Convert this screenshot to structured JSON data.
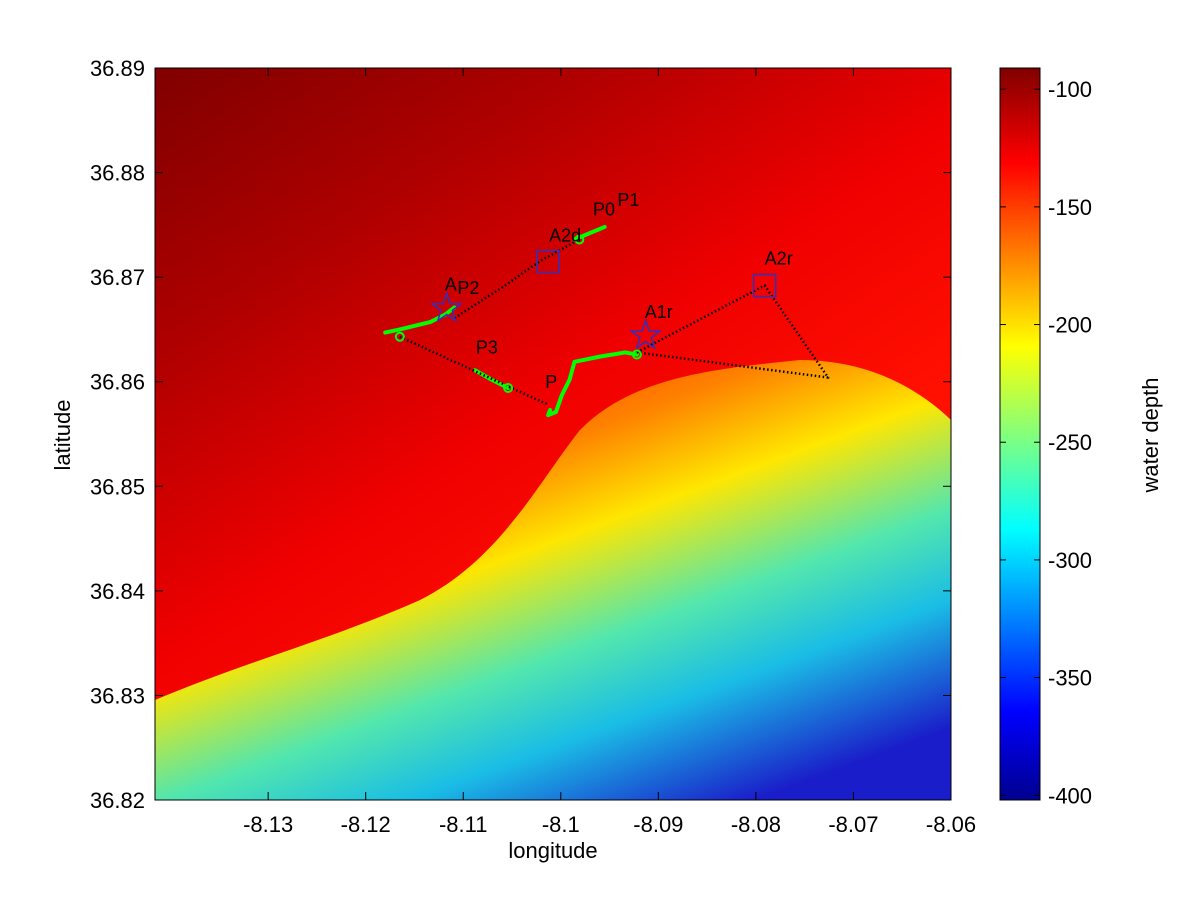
{
  "chart_data": {
    "type": "map",
    "xlabel": "longitude",
    "ylabel": "latitude",
    "xlim": [
      -8.1416,
      -8.06
    ],
    "ylim": [
      36.82,
      36.89
    ],
    "xticks": [
      -8.13,
      -8.12,
      -8.11,
      -8.1,
      -8.09,
      -8.08,
      -8.07,
      -8.06
    ],
    "yticks": [
      36.82,
      36.83,
      36.84,
      36.85,
      36.86,
      36.87,
      36.88,
      36.89
    ],
    "colorbar": {
      "label": "water depth",
      "lim": [
        -402,
        -91
      ],
      "ticks": [
        -400,
        -350,
        -300,
        -250,
        -200,
        -150,
        -100
      ]
    },
    "tracks": [
      {
        "color": "#00ff00",
        "style": "solid",
        "x": [
          -8.0986,
          -8.0955
        ],
        "y": [
          36.8736,
          36.8748
        ]
      },
      {
        "color": "#00ff00",
        "style": "solid",
        "x": [
          -8.118,
          -8.1165,
          -8.1134,
          -8.1119,
          -8.1109
        ],
        "y": [
          36.8647,
          36.865,
          36.8657,
          36.8664,
          36.8671
        ]
      },
      {
        "color": "#00ff00",
        "style": "solid",
        "x": [
          -8.1088,
          -8.1071,
          -8.1054
        ],
        "y": [
          36.8611,
          36.8602,
          36.8594
        ]
      },
      {
        "color": "#00ff00",
        "style": "solid",
        "x": [
          -8.1011,
          -8.1013,
          -8.1005,
          -8.0999,
          -8.0991,
          -8.0986,
          -8.096,
          -8.0934,
          -8.0922
        ],
        "y": [
          36.8573,
          36.8568,
          36.8571,
          36.8587,
          36.8602,
          36.8619,
          36.8624,
          36.8628,
          36.8626
        ]
      },
      {
        "color": "#000000",
        "style": "dotted",
        "x": [
          -8.1109,
          -8.1057,
          -8.1022,
          -8.0981
        ],
        "y": [
          36.8661,
          36.8692,
          36.8715,
          36.8736
        ]
      },
      {
        "color": "#000000",
        "style": "dotted",
        "x": [
          -8.1165,
          -8.1013
        ],
        "y": [
          36.8643,
          36.8578
        ]
      },
      {
        "color": "#000000",
        "style": "dotted",
        "x": [
          -8.0922,
          -8.0791,
          -8.0726,
          -8.0922
        ],
        "y": [
          36.8628,
          36.8692,
          36.8604,
          36.8628
        ]
      }
    ],
    "markers": [
      {
        "shape": "star",
        "color": "#3030c0",
        "x": -8.1117,
        "y": 36.867
      },
      {
        "shape": "star",
        "color": "#3030c0",
        "x": -8.0913,
        "y": 36.8644
      },
      {
        "shape": "square",
        "color": "#3030c0",
        "x": -8.1013,
        "y": 36.8715
      },
      {
        "shape": "square",
        "color": "#3030c0",
        "x": -8.0791,
        "y": 36.8692
      },
      {
        "shape": "circle",
        "color": "#00ff00",
        "x": -8.1165,
        "y": 36.8643
      },
      {
        "shape": "circle",
        "color": "#00ff00",
        "x": -8.1054,
        "y": 36.8594
      },
      {
        "shape": "circle",
        "color": "#00ff00",
        "x": -8.0922,
        "y": 36.8626
      },
      {
        "shape": "circle",
        "color": "#00ff00",
        "x": -8.0981,
        "y": 36.8736
      }
    ],
    "annotations": [
      {
        "text": "P0",
        "x": -8.0967,
        "y": 36.8759,
        "color": "#00ff00"
      },
      {
        "text": "P1",
        "x": -8.0942,
        "y": 36.8768,
        "color": "#00ff00"
      },
      {
        "text": "A2d",
        "x": -8.1012,
        "y": 36.8734,
        "color": "#000000"
      },
      {
        "text": "A",
        "x": -8.1119,
        "y": 36.8687,
        "color": "#000000"
      },
      {
        "text": "P2",
        "x": -8.1106,
        "y": 36.8684,
        "color": "#00ff00"
      },
      {
        "text": "P3",
        "x": -8.1087,
        "y": 36.8627,
        "color": "#00ff00"
      },
      {
        "text": "P",
        "x": -8.1016,
        "y": 36.8594,
        "color": "#00ff00"
      },
      {
        "text": "A1r",
        "x": -8.0914,
        "y": 36.8661,
        "color": "#000000"
      },
      {
        "text": "A2r",
        "x": -8.0791,
        "y": 36.8712,
        "color": "#000000"
      }
    ]
  }
}
